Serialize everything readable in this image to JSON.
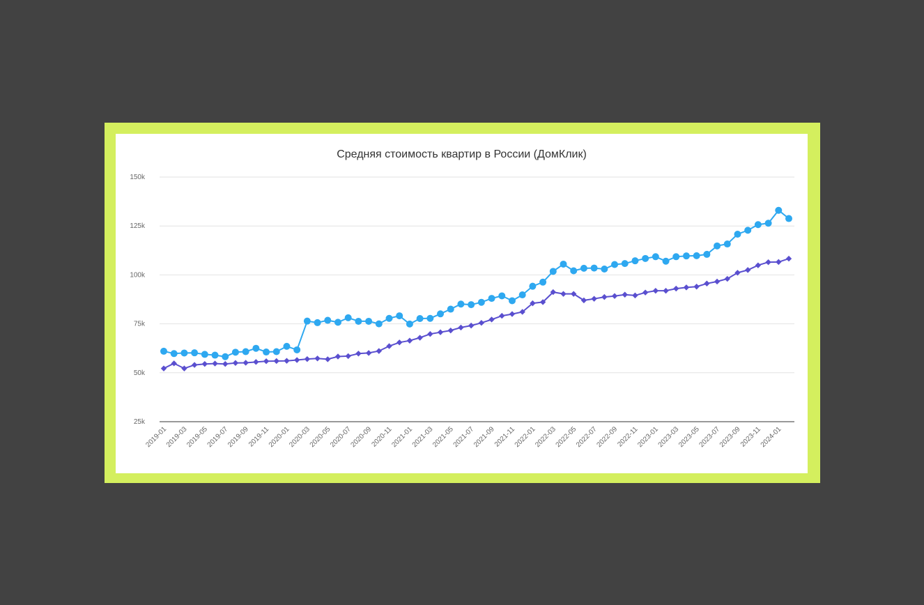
{
  "chart_data": {
    "type": "line",
    "title": "Средняя стоимость квартир в России (ДомКлик)",
    "xlabel": "",
    "ylabel": "",
    "ylim": [
      25000,
      150000
    ],
    "y_ticks": [
      {
        "value": 25000,
        "label": "25k"
      },
      {
        "value": 50000,
        "label": "50k"
      },
      {
        "value": 75000,
        "label": "75k"
      },
      {
        "value": 100000,
        "label": "100k"
      },
      {
        "value": 125000,
        "label": "125k"
      },
      {
        "value": 150000,
        "label": "150k"
      }
    ],
    "grid": true,
    "legend": "none",
    "x": [
      "2019-01",
      "2019-02",
      "2019-03",
      "2019-04",
      "2019-05",
      "2019-06",
      "2019-07",
      "2019-08",
      "2019-09",
      "2019-10",
      "2019-11",
      "2019-12",
      "2020-01",
      "2020-02",
      "2020-03",
      "2020-04",
      "2020-05",
      "2020-06",
      "2020-07",
      "2020-08",
      "2020-09",
      "2020-10",
      "2020-11",
      "2020-12",
      "2021-01",
      "2021-02",
      "2021-03",
      "2021-04",
      "2021-05",
      "2021-06",
      "2021-07",
      "2021-08",
      "2021-09",
      "2021-10",
      "2021-11",
      "2021-12",
      "2022-01",
      "2022-02",
      "2022-03",
      "2022-04",
      "2022-05",
      "2022-06",
      "2022-07",
      "2022-08",
      "2022-09",
      "2022-10",
      "2022-11",
      "2022-12",
      "2023-01",
      "2023-02",
      "2023-03",
      "2023-04",
      "2023-05",
      "2023-06",
      "2023-07",
      "2023-08",
      "2023-09",
      "2023-10",
      "2023-11",
      "2023-12",
      "2024-01",
      "2024-02"
    ],
    "x_tick_labels": [
      "2019-01",
      "2019-03",
      "2019-05",
      "2019-07",
      "2019-09",
      "2019-11",
      "2020-01",
      "2020-03",
      "2020-05",
      "2020-07",
      "2020-09",
      "2020-11",
      "2021-01",
      "2021-03",
      "2021-05",
      "2021-07",
      "2021-09",
      "2021-11",
      "2022-01",
      "2022-03",
      "2022-05",
      "2022-07",
      "2022-09",
      "2022-11",
      "2023-01",
      "2023-03",
      "2023-05",
      "2023-07",
      "2023-09",
      "2023-11",
      "2024-01"
    ],
    "series": [
      {
        "color": "#2ea8f0",
        "marker": "circle",
        "values": [
          61000,
          59800,
          60100,
          60200,
          59400,
          59000,
          58200,
          60500,
          60800,
          62500,
          60600,
          60800,
          63500,
          61700,
          76400,
          75600,
          76800,
          75800,
          78100,
          76300,
          76300,
          75000,
          77800,
          79100,
          74900,
          77700,
          77800,
          80100,
          82500,
          85100,
          84800,
          86000,
          88000,
          89300,
          86800,
          89800,
          94200,
          96300,
          101800,
          105500,
          102100,
          103400,
          103500,
          103000,
          105300,
          105800,
          107200,
          108400,
          109300,
          107000,
          109300,
          109700,
          109800,
          110500,
          114800,
          115800,
          120800,
          122800,
          125700,
          126400,
          133000,
          128800
        ]
      },
      {
        "color": "#5a4fcf",
        "marker": "diamond",
        "values": [
          52200,
          54800,
          52200,
          54000,
          54500,
          54700,
          54500,
          55000,
          55100,
          55500,
          55900,
          56000,
          56100,
          56500,
          57000,
          57300,
          56900,
          58300,
          58500,
          59800,
          60100,
          61100,
          63600,
          65500,
          66400,
          67900,
          69800,
          70700,
          71600,
          73100,
          74100,
          75500,
          77200,
          79100,
          80000,
          81100,
          85500,
          86100,
          91200,
          90300,
          90300,
          87000,
          87800,
          88700,
          89200,
          89900,
          89500,
          91000,
          91900,
          91900,
          93000,
          93600,
          94000,
          95600,
          96600,
          98000,
          101100,
          102500,
          104900,
          106500,
          106600,
          108300
        ]
      }
    ]
  }
}
